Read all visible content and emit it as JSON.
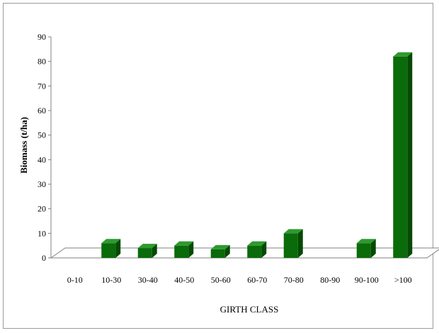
{
  "chart_data": {
    "type": "bar",
    "title": "",
    "xlabel": "GIRTH CLASS",
    "ylabel": "Biomass (t/ha)",
    "categories": [
      "0-10",
      "10-30",
      "30-40",
      "40-50",
      "50-60",
      "60-70",
      "70-80",
      "80-90",
      "90-100",
      ">100"
    ],
    "values": [
      0,
      6,
      4,
      5,
      3.5,
      5,
      10,
      0,
      6,
      82
    ],
    "ylim": [
      0,
      90
    ],
    "yticks": [
      0,
      10,
      20,
      30,
      40,
      50,
      60,
      70,
      80,
      90
    ],
    "grid": false,
    "legend": "none",
    "style": "3d-bar",
    "colors": {
      "bar_front": "#0a6b0a",
      "bar_top": "#2e9a2e",
      "bar_side": "#044a04",
      "axis": "#808080"
    }
  }
}
